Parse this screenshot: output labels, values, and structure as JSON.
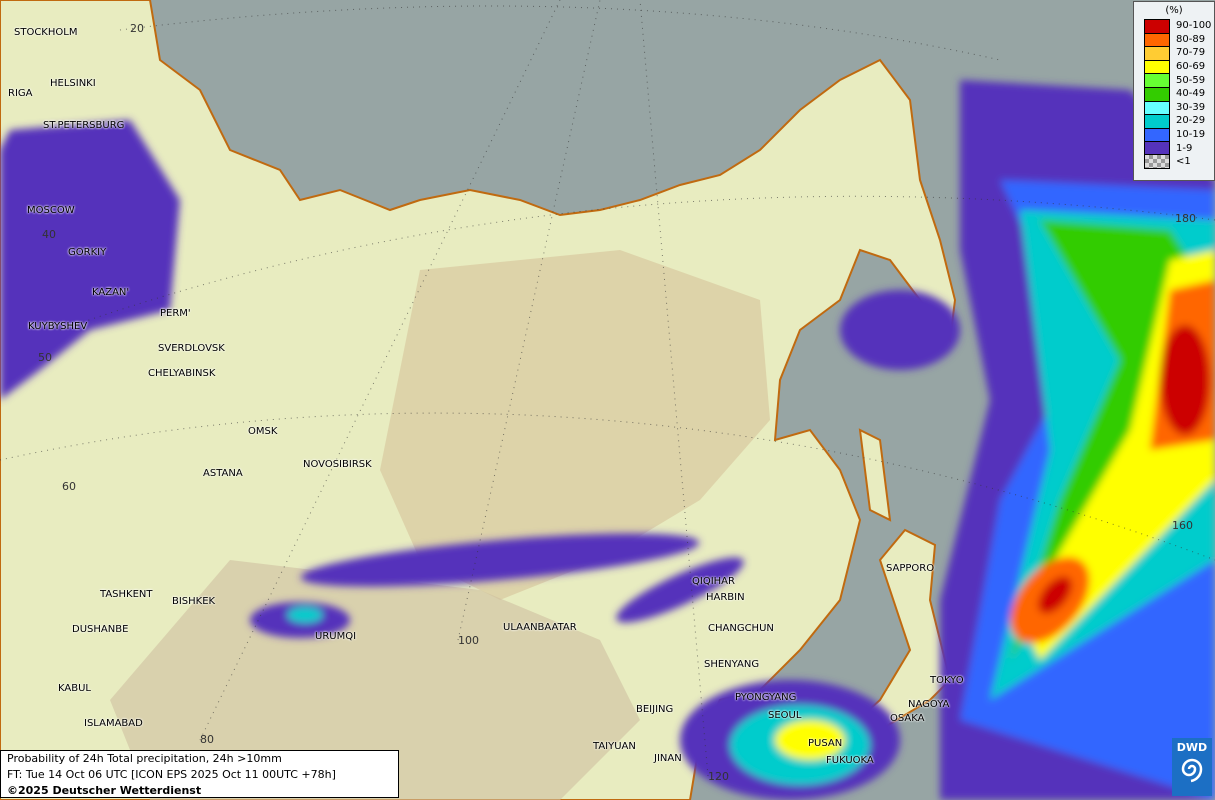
{
  "map": {
    "type": "probability precipitation map",
    "cities": [
      "STOCKHOLM",
      "HELSINKI",
      "RIGA",
      "ST.PETERSBURG",
      "MOSCOW",
      "GORKIY",
      "KAZAN'",
      "PERM'",
      "KUYBYSHEV",
      "SVERDLOVSK",
      "CHELYABINSK",
      "OMSK",
      "ASTANA",
      "NOVOSIBIRSK",
      "TASHKENT",
      "BISHKEK",
      "DUSHANBE",
      "URUMQI",
      "KABUL",
      "ISLAMABAD",
      "ULAANBAATAR",
      "QIQIHAR",
      "HARBIN",
      "CHANGCHUN",
      "SHENYANG",
      "BEIJING",
      "PYONGYANG",
      "SEOUL",
      "TAIYUAN",
      "JINAN",
      "PUSAN",
      "FUKUOKA",
      "SAPPORO",
      "TOKYO",
      "NAGOYA",
      "OSAKA"
    ],
    "grid_labels": [
      "20",
      "40",
      "50",
      "60",
      "80",
      "100",
      "120",
      "160",
      "180"
    ],
    "colors": {
      "ocean": "#97a5a4",
      "land": "#e8ecc8",
      "coast": "#c06a10"
    }
  },
  "legend": {
    "unit": "(%)",
    "items": [
      {
        "label": "90-100",
        "color": "#cc0000"
      },
      {
        "label": "80-89",
        "color": "#ff6600"
      },
      {
        "label": "70-79",
        "color": "#ffcc33"
      },
      {
        "label": "60-69",
        "color": "#ffff00"
      },
      {
        "label": "50-59",
        "color": "#66ff33"
      },
      {
        "label": "40-49",
        "color": "#33cc00"
      },
      {
        "label": "30-39",
        "color": "#66ffff"
      },
      {
        "label": "20-29",
        "color": "#00cccc"
      },
      {
        "label": "10-19",
        "color": "#3366ff"
      },
      {
        "label": "1-9",
        "color": "#5533bb"
      },
      {
        "label": "<1",
        "color": "checker"
      }
    ]
  },
  "caption": {
    "line1": "Probability of 24h Total precipitation, 24h >10mm",
    "line2": "FT: Tue 14 Oct 06 UTC [ICON EPS 2025 Oct 11 00UTC +78h]",
    "line3": "©2025 Deutscher Wetterdienst"
  },
  "logo": {
    "text": "DWD"
  }
}
